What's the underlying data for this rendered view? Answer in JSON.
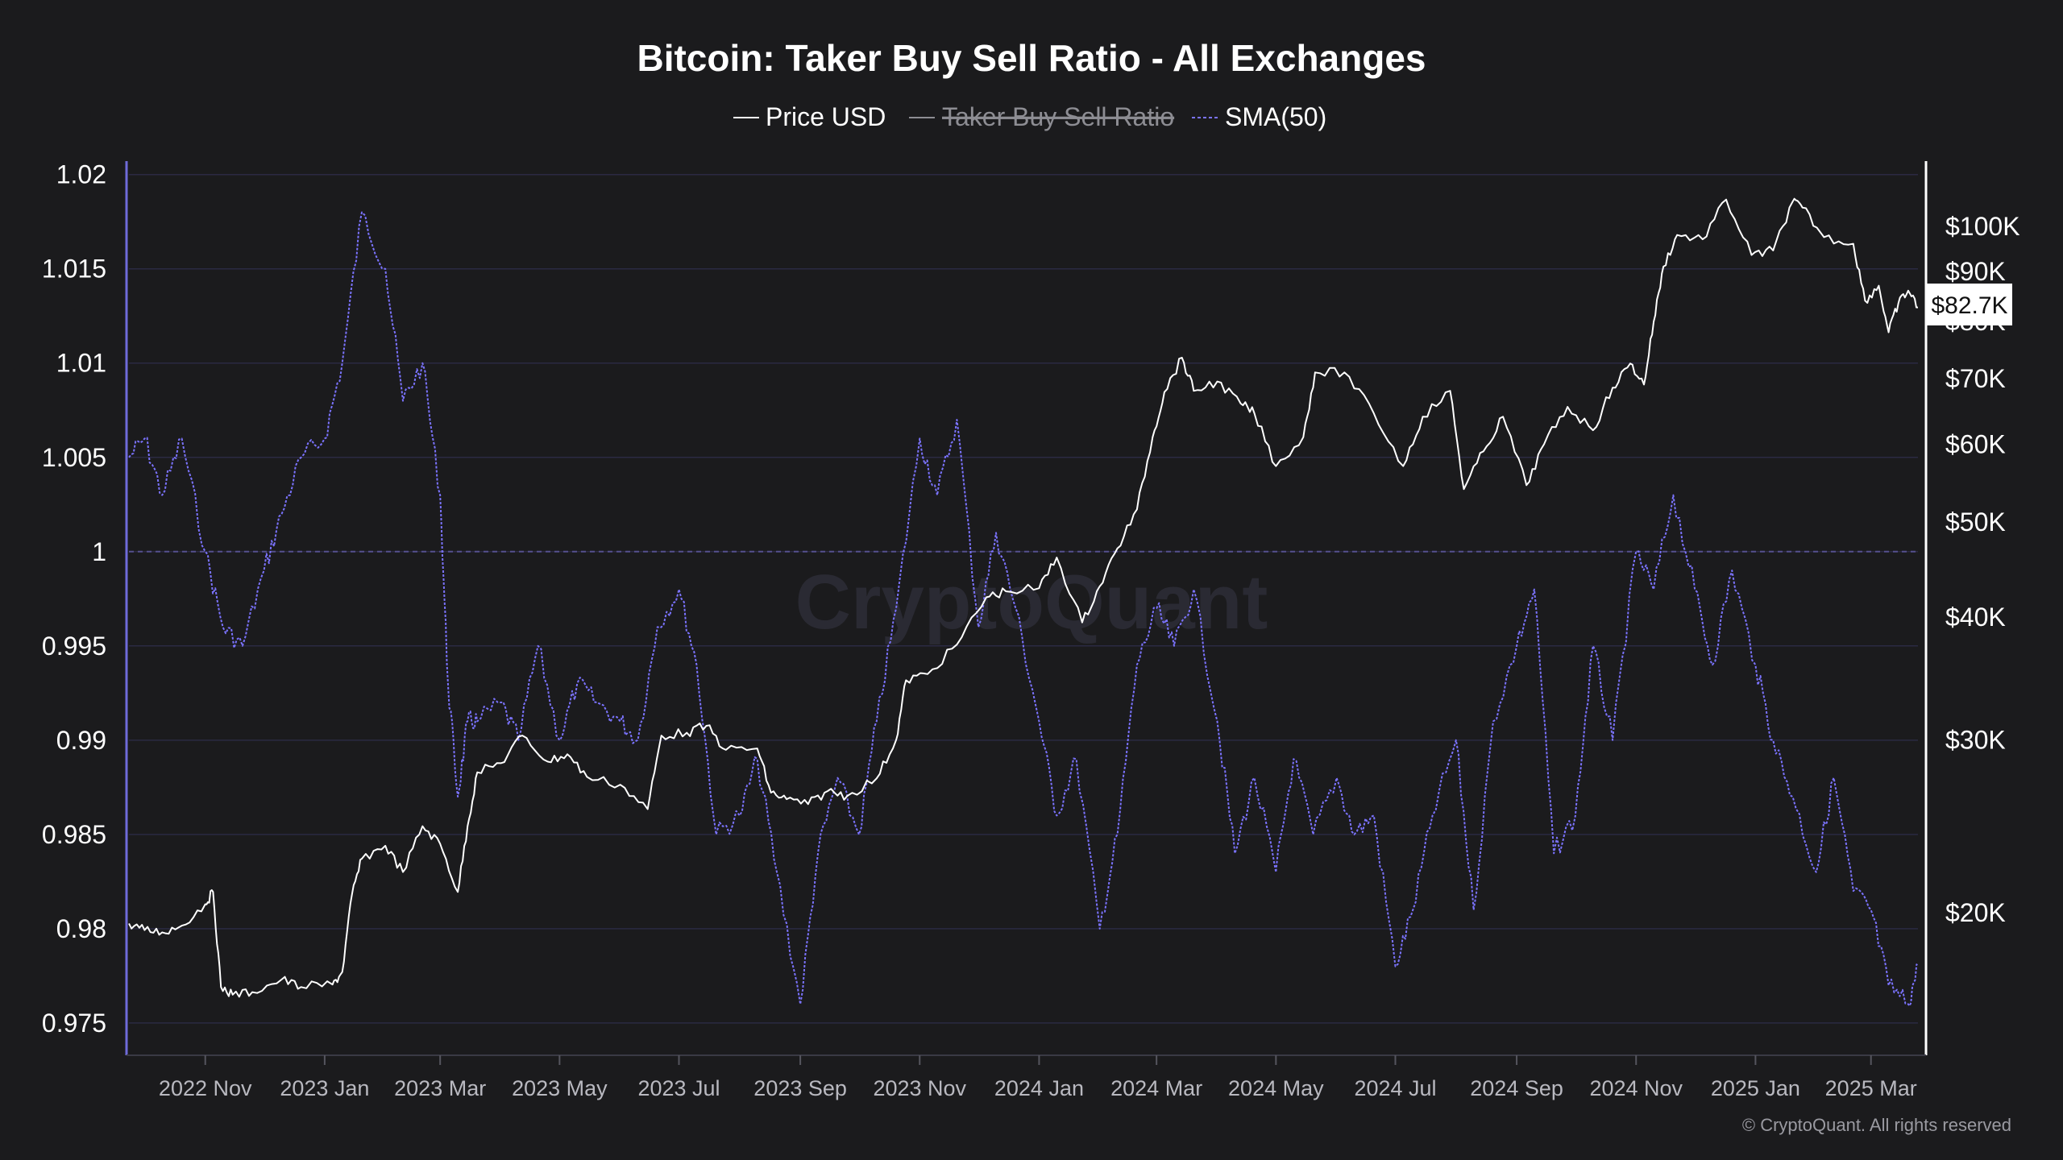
{
  "chart_data": {
    "type": "line",
    "title": "Bitcoin: Taker Buy Sell Ratio - All Exchanges",
    "legend": {
      "placement": "top-center",
      "items": [
        {
          "label": "Price USD",
          "style": "solid",
          "color": "#ffffff",
          "hidden": false
        },
        {
          "label": "Taker Buy Sell Ratio",
          "style": "solid",
          "color": "#8d8d93",
          "hidden": true
        },
        {
          "label": "SMA(50)",
          "style": "dashed",
          "color": "#7b73ff",
          "hidden": false
        }
      ]
    },
    "x_axis": {
      "ticks": [
        "2022 Nov",
        "2023 Jan",
        "2023 Mar",
        "2023 May",
        "2023 Jul",
        "2023 Sep",
        "2023 Nov",
        "2024 Jan",
        "2024 Mar",
        "2024 May",
        "2024 Jul",
        "2024 Sep",
        "2024 Nov",
        "2025 Jan",
        "2025 Mar"
      ],
      "range": [
        "2022-09-23",
        "2025-03-25"
      ]
    },
    "y_left": {
      "ticks": [
        "1.02",
        "1.015",
        "1.01",
        "1.005",
        "1",
        "0.995",
        "0.99",
        "0.985",
        "0.98",
        "0.975"
      ],
      "range": [
        0.9735,
        1.0205
      ],
      "reference_line": 1
    },
    "y_right": {
      "scale": "log",
      "ticks": [
        "$100K",
        "$90K",
        "$80K",
        "$70K",
        "$60K",
        "$50K",
        "$40K",
        "$30K",
        "$20K"
      ],
      "tick_values": [
        100000,
        90000,
        80000,
        70000,
        60000,
        50000,
        40000,
        30000,
        20000
      ],
      "current_value_label": "$82.7K"
    },
    "grid": true,
    "series": [
      {
        "name": "Price USD",
        "axis": "right",
        "x": [
          "2022-09-23",
          "2022-10-01",
          "2022-10-10",
          "2022-10-20",
          "2022-11-01",
          "2022-11-05",
          "2022-11-09",
          "2022-11-15",
          "2022-11-25",
          "2022-12-10",
          "2022-12-20",
          "2023-01-05",
          "2023-01-10",
          "2023-01-15",
          "2023-01-20",
          "2023-02-01",
          "2023-02-10",
          "2023-02-20",
          "2023-03-01",
          "2023-03-10",
          "2023-03-15",
          "2023-03-20",
          "2023-04-01",
          "2023-04-12",
          "2023-04-25",
          "2023-05-05",
          "2023-05-15",
          "2023-06-01",
          "2023-06-15",
          "2023-06-22",
          "2023-07-05",
          "2023-07-15",
          "2023-07-25",
          "2023-08-10",
          "2023-08-17",
          "2023-08-25",
          "2023-09-05",
          "2023-09-15",
          "2023-09-25",
          "2023-10-10",
          "2023-10-20",
          "2023-10-25",
          "2023-11-05",
          "2023-11-20",
          "2023-12-05",
          "2023-12-15",
          "2024-01-01",
          "2024-01-10",
          "2024-01-23",
          "2024-02-01",
          "2024-02-10",
          "2024-02-20",
          "2024-02-28",
          "2024-03-05",
          "2024-03-14",
          "2024-03-20",
          "2024-04-01",
          "2024-04-13",
          "2024-04-20",
          "2024-05-01",
          "2024-05-15",
          "2024-05-21",
          "2024-06-05",
          "2024-06-20",
          "2024-07-05",
          "2024-07-15",
          "2024-07-29",
          "2024-08-05",
          "2024-08-15",
          "2024-08-25",
          "2024-09-06",
          "2024-09-15",
          "2024-09-27",
          "2024-10-10",
          "2024-10-20",
          "2024-10-29",
          "2024-11-05",
          "2024-11-10",
          "2024-11-15",
          "2024-11-22",
          "2024-12-05",
          "2024-12-17",
          "2024-12-30",
          "2025-01-10",
          "2025-01-20",
          "2025-01-25",
          "2025-02-05",
          "2025-02-20",
          "2025-02-26",
          "2025-03-05",
          "2025-03-10",
          "2025-03-15",
          "2025-03-20",
          "2025-03-25"
        ],
        "y": [
          19500,
          19200,
          19100,
          19400,
          20400,
          21000,
          16800,
          16500,
          16600,
          17100,
          16800,
          16900,
          17400,
          20900,
          22700,
          23400,
          22000,
          24500,
          23500,
          21000,
          24500,
          27800,
          28400,
          30300,
          28500,
          29000,
          27500,
          27000,
          25500,
          30300,
          30500,
          31000,
          29300,
          29400,
          26500,
          26100,
          25800,
          26600,
          26300,
          27400,
          30000,
          34500,
          35000,
          37500,
          41900,
          42500,
          42800,
          46000,
          39500,
          43000,
          47000,
          51500,
          61000,
          67800,
          73500,
          68000,
          69500,
          66000,
          64500,
          57000,
          61000,
          71000,
          71000,
          64500,
          57000,
          64000,
          68000,
          54000,
          59000,
          64000,
          54500,
          60000,
          65500,
          62000,
          68500,
          72500,
          69000,
          80000,
          91000,
          98000,
          97000,
          106500,
          93500,
          94500,
          106000,
          104500,
          97500,
          96000,
          84000,
          87000,
          78000,
          83500,
          86000,
          82700
        ]
      },
      {
        "name": "SMA(50)",
        "axis": "left",
        "x": [
          "2022-09-23",
          "2022-10-01",
          "2022-10-10",
          "2022-10-20",
          "2022-11-01",
          "2022-11-10",
          "2022-11-20",
          "2022-12-01",
          "2022-12-10",
          "2022-12-20",
          "2023-01-01",
          "2023-01-10",
          "2023-01-20",
          "2023-02-01",
          "2023-02-10",
          "2023-02-20",
          "2023-03-01",
          "2023-03-05",
          "2023-03-10",
          "2023-03-15",
          "2023-03-20",
          "2023-04-01",
          "2023-04-10",
          "2023-04-20",
          "2023-05-01",
          "2023-05-10",
          "2023-05-20",
          "2023-06-01",
          "2023-06-10",
          "2023-06-20",
          "2023-07-01",
          "2023-07-10",
          "2023-07-20",
          "2023-08-01",
          "2023-08-10",
          "2023-08-20",
          "2023-09-01",
          "2023-09-10",
          "2023-09-20",
          "2023-10-01",
          "2023-10-10",
          "2023-10-20",
          "2023-11-01",
          "2023-11-10",
          "2023-11-20",
          "2023-12-01",
          "2023-12-10",
          "2023-12-20",
          "2024-01-01",
          "2024-01-10",
          "2024-01-20",
          "2024-02-01",
          "2024-02-10",
          "2024-02-20",
          "2024-03-01",
          "2024-03-10",
          "2024-03-20",
          "2024-04-01",
          "2024-04-10",
          "2024-04-20",
          "2024-05-01",
          "2024-05-10",
          "2024-05-20",
          "2024-06-01",
          "2024-06-10",
          "2024-06-20",
          "2024-07-01",
          "2024-07-10",
          "2024-07-20",
          "2024-08-01",
          "2024-08-10",
          "2024-08-20",
          "2024-09-01",
          "2024-09-10",
          "2024-09-20",
          "2024-10-01",
          "2024-10-10",
          "2024-10-20",
          "2024-11-01",
          "2024-11-10",
          "2024-11-20",
          "2024-12-01",
          "2024-12-10",
          "2024-12-20",
          "2025-01-01",
          "2025-01-10",
          "2025-01-20",
          "2025-02-01",
          "2025-02-10",
          "2025-02-20",
          "2025-03-01",
          "2025-03-10",
          "2025-03-20",
          "2025-03-25"
        ],
        "y": [
          1.005,
          1.006,
          1.003,
          1.006,
          1.0,
          0.996,
          0.995,
          0.999,
          1.002,
          1.005,
          1.006,
          1.01,
          1.018,
          1.015,
          1.008,
          1.01,
          1.003,
          0.993,
          0.987,
          0.991,
          0.991,
          0.992,
          0.99,
          0.995,
          0.99,
          0.993,
          0.992,
          0.991,
          0.99,
          0.996,
          0.998,
          0.994,
          0.985,
          0.986,
          0.989,
          0.983,
          0.976,
          0.984,
          0.988,
          0.985,
          0.991,
          0.997,
          1.006,
          1.003,
          1.007,
          0.996,
          1.001,
          0.997,
          0.991,
          0.986,
          0.989,
          0.98,
          0.985,
          0.994,
          0.997,
          0.995,
          0.998,
          0.991,
          0.984,
          0.988,
          0.983,
          0.989,
          0.985,
          0.988,
          0.985,
          0.986,
          0.978,
          0.981,
          0.986,
          0.99,
          0.981,
          0.991,
          0.995,
          0.998,
          0.984,
          0.986,
          0.995,
          0.99,
          1.0,
          0.998,
          1.003,
          0.998,
          0.994,
          0.999,
          0.994,
          0.99,
          0.987,
          0.983,
          0.988,
          0.982,
          0.981,
          0.977,
          0.976,
          0.978
        ]
      }
    ]
  },
  "watermark": "CryptoQuant",
  "copyright": "© CryptoQuant. All rights reserved",
  "colors": {
    "background": "#1b1b1d",
    "grid": "#2b2a42",
    "left_axis": "#6f6bd9",
    "price_line": "#ffffff",
    "sma_line": "#7b73ff"
  }
}
